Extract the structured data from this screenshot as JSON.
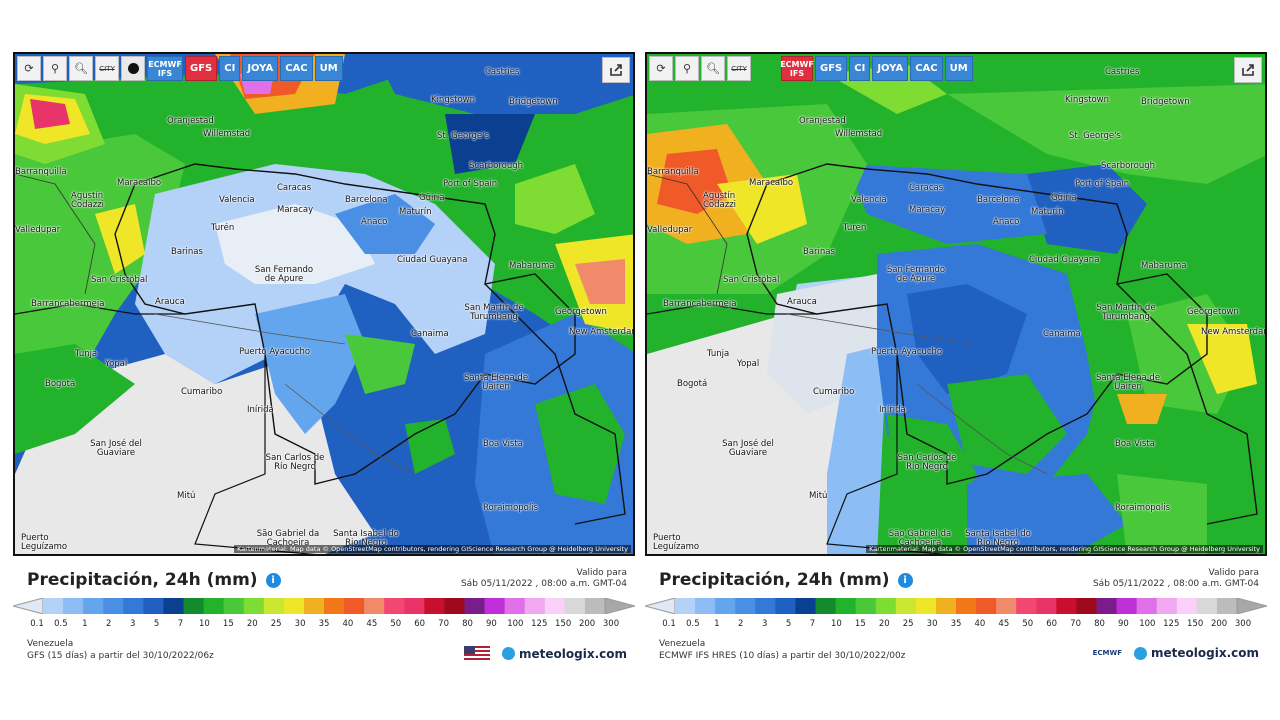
{
  "colors": {
    "accent": "#3a86d6",
    "active_model": "#e03040",
    "scale": [
      "#b4d2f8",
      "#8cbef5",
      "#64a6ee",
      "#4a8fe4",
      "#3478d8",
      "#2060c0",
      "#0b3f90",
      "#138a2c",
      "#22b22c",
      "#48c83a",
      "#7edc32",
      "#c8e632",
      "#f0e628",
      "#f0b020",
      "#f07818",
      "#f05a28",
      "#f08a6a",
      "#f04870",
      "#e83468",
      "#c8102c",
      "#9c0a1c",
      "#7a1c8c",
      "#c030d8",
      "#e070e8",
      "#f0a8f0",
      "#f8d0f8",
      "#d8d8d8",
      "#bcbcbc"
    ]
  },
  "toolbar": {
    "reload_icon": "reload-icon",
    "location_icon": "location-pin-icon",
    "zoom_icon": "zoom-icon",
    "city_label": "CITY",
    "dot_icon": "black-dot-icon",
    "share_icon": "share-icon"
  },
  "panels": [
    {
      "models": [
        {
          "label": "ECMWF IFS",
          "active": false
        },
        {
          "label": "GFS",
          "active": true
        },
        {
          "label": "CI",
          "active": false
        },
        {
          "label": "JOYA",
          "active": false
        },
        {
          "label": "CAC",
          "active": false
        },
        {
          "label": "UM",
          "active": false
        }
      ],
      "title": "Precipitación, 24h (mm)",
      "valid_label": "Valido para",
      "valid_time": "Sáb 05/11/2022 , 08:00 a.m. GMT-04",
      "region": "Venezuela",
      "model_run": "GFS (15 días) a partir del 30/10/2022/06z",
      "brand": "meteologix.com",
      "attribution": "Kartenmaterial: Map data © OpenStreetMap contributors, rendering GIScience Research Group @ Heidelberg University",
      "logo": "us-flag"
    },
    {
      "models": [
        {
          "label": "ECMWF IFS",
          "active": true
        },
        {
          "label": "GFS",
          "active": false
        },
        {
          "label": "CI",
          "active": false
        },
        {
          "label": "JOYA",
          "active": false
        },
        {
          "label": "CAC",
          "active": false
        },
        {
          "label": "UM",
          "active": false
        }
      ],
      "title": "Precipitación, 24h (mm)",
      "valid_label": "Valido para",
      "valid_time": "Sáb 05/11/2022 , 08:00 a.m. GMT-04",
      "region": "Venezuela",
      "model_run": "ECMWF IFS HRES (10 días) a partir del 30/10/2022/00z",
      "brand": "meteologix.com",
      "attribution": "Kartenmaterial: Map data © OpenStreetMap contributors, rendering GIScience Research Group @ Heidelberg University",
      "logo": "ECMWF"
    }
  ],
  "scale_ticks": [
    "0.1",
    "0.5",
    "1",
    "2",
    "3",
    "5",
    "7",
    "10",
    "15",
    "20",
    "25",
    "30",
    "35",
    "40",
    "45",
    "50",
    "60",
    "70",
    "80",
    "90",
    "100",
    "125",
    "150",
    "200",
    "300"
  ],
  "cities": [
    "Castries",
    "Kingstown",
    "Bridgetown",
    "Oranjestad",
    "Willemstad",
    "St. George's",
    "Scarborough",
    "Barranquilla",
    "Maracaibo",
    "Port of Spain",
    "Agustín Codazzi",
    "Caracas",
    "Valencia",
    "Maracay",
    "Barcelona",
    "Güiria",
    "Maturín",
    "Anaco",
    "Turén",
    "Barinas",
    "Valledupar",
    "San Fernando de Apure",
    "Ciudad Guayana",
    "Mabaruma",
    "San Cristóbal",
    "Barrancabermeja",
    "Arauca",
    "San Martín de Turumbang",
    "Georgetown",
    "New Amsterdam",
    "Canaima",
    "Tunja",
    "Yopal",
    "Puerto Ayacucho",
    "Bogotá",
    "Santa Elena de Uairén",
    "Cumaribo",
    "Inírida",
    "Boa Vista",
    "San José del Guaviare",
    "San Carlos de Río Negro",
    "Mitú",
    "Roraimópolis",
    "São Gabriel da Cachoeira",
    "Santa Isabel do Rio Negro",
    "Puerto Leguízamo"
  ]
}
